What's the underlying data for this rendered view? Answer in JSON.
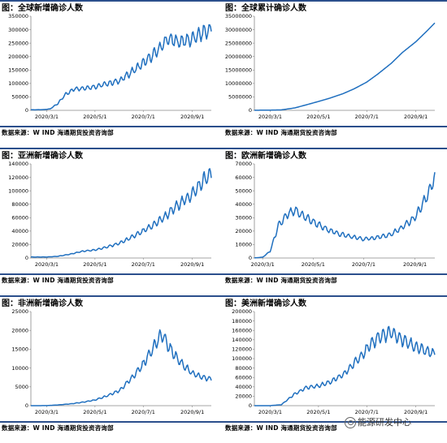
{
  "source_text": "数据来源：W IND   海通期货投资咨询部",
  "watermark": "能源研发中心",
  "line_color": "#1f6fbf",
  "axis_color": "#888888",
  "chart_data": [
    {
      "type": "line",
      "title": "图：全球新增确诊人数",
      "x_ticks": [
        "2020/3/1",
        "2020/5/1",
        "2020/7/1",
        "2020/9/1"
      ],
      "y_ticks": [
        "0",
        "50000",
        "100000",
        "150000",
        "200000",
        "250000",
        "300000",
        "350000"
      ],
      "ylim": [
        0,
        350000
      ],
      "x_range": [
        "2020/2/10",
        "2020/9/25"
      ],
      "series": [
        {
          "x": [
            "2020/2/10",
            "2020/2/25",
            "2020/3/5",
            "2020/3/15",
            "2020/3/25",
            "2020/4/5",
            "2020/4/15",
            "2020/5/1",
            "2020/5/15",
            "2020/6/1",
            "2020/6/15",
            "2020/7/1",
            "2020/7/15",
            "2020/8/1",
            "2020/8/15",
            "2020/9/1",
            "2020/9/15",
            "2020/9/25"
          ],
          "values": [
            2000,
            2500,
            5000,
            25000,
            60000,
            80000,
            82000,
            88000,
            98000,
            110000,
            140000,
            175000,
            210000,
            265000,
            255000,
            265000,
            290000,
            300000
          ]
        }
      ]
    },
    {
      "type": "line",
      "title": "图：全球累计确诊人数",
      "x_ticks": [
        "2020/3/1",
        "2020/5/1",
        "2020/7/1",
        "2020/9/1"
      ],
      "y_ticks": [
        "0",
        "5000000",
        "10000000",
        "15000000",
        "20000000",
        "25000000",
        "30000000",
        "35000000"
      ],
      "ylim": [
        0,
        35000000
      ],
      "x_range": [
        "2020/2/10",
        "2020/9/25"
      ],
      "series": [
        {
          "x": [
            "2020/2/10",
            "2020/3/1",
            "2020/3/15",
            "2020/4/1",
            "2020/4/15",
            "2020/5/1",
            "2020/5/15",
            "2020/6/1",
            "2020/6/15",
            "2020/7/1",
            "2020/7/15",
            "2020/8/1",
            "2020/8/15",
            "2020/9/1",
            "2020/9/15",
            "2020/9/25"
          ],
          "values": [
            40000,
            88000,
            170000,
            900000,
            2000000,
            3300000,
            4500000,
            6200000,
            8000000,
            10500000,
            13500000,
            17500000,
            21500000,
            25500000,
            29500000,
            32500000
          ]
        }
      ]
    },
    {
      "type": "line",
      "title": "图：亚洲新增确诊人数",
      "x_ticks": [
        "2020/3/1",
        "2020/5/1",
        "2020/7/1",
        "2020/9/1"
      ],
      "y_ticks": [
        "0",
        "20000",
        "40000",
        "60000",
        "80000",
        "100000",
        "120000",
        "140000"
      ],
      "ylim": [
        0,
        140000
      ],
      "x_range": [
        "2020/2/10",
        "2020/9/25"
      ],
      "series": [
        {
          "x": [
            "2020/2/10",
            "2020/3/1",
            "2020/3/15",
            "2020/4/1",
            "2020/4/15",
            "2020/5/1",
            "2020/5/15",
            "2020/6/1",
            "2020/6/15",
            "2020/7/1",
            "2020/7/15",
            "2020/8/1",
            "2020/8/15",
            "2020/9/1",
            "2020/9/15",
            "2020/9/25"
          ],
          "values": [
            1500,
            1500,
            2500,
            6000,
            10000,
            12000,
            16000,
            22000,
            30000,
            40000,
            50000,
            65000,
            80000,
            95000,
            115000,
            125000
          ]
        }
      ]
    },
    {
      "type": "line",
      "title": "图：欧洲新增确诊人数",
      "x_ticks": [
        "2020/3/1",
        "2020/5/1",
        "2020/7/1",
        "2020/9/1"
      ],
      "y_ticks": [
        "0",
        "10000",
        "20000",
        "30000",
        "40000",
        "50000",
        "60000",
        "70000"
      ],
      "ylim": [
        0,
        70000
      ],
      "x_range": [
        "2020/2/20",
        "2020/9/25"
      ],
      "series": [
        {
          "x": [
            "2020/2/20",
            "2020/3/1",
            "2020/3/10",
            "2020/3/20",
            "2020/4/1",
            "2020/4/10",
            "2020/4/20",
            "2020/5/1",
            "2020/5/15",
            "2020/6/1",
            "2020/6/15",
            "2020/7/1",
            "2020/7/15",
            "2020/8/1",
            "2020/8/15",
            "2020/9/1",
            "2020/9/15",
            "2020/9/25"
          ],
          "values": [
            100,
            600,
            5000,
            24000,
            33000,
            35000,
            31000,
            27000,
            22000,
            18000,
            16000,
            14000,
            15000,
            17000,
            22000,
            30000,
            45000,
            60000
          ]
        }
      ]
    },
    {
      "type": "line",
      "title": "图：非洲新增确诊人数",
      "x_ticks": [
        "2020/3/1",
        "2020/5/1",
        "2020/7/1",
        "2020/9/1"
      ],
      "y_ticks": [
        "0",
        "5000",
        "10000",
        "15000",
        "20000",
        "25000"
      ],
      "ylim": [
        0,
        25000
      ],
      "x_range": [
        "2020/2/10",
        "2020/9/25"
      ],
      "series": [
        {
          "x": [
            "2020/2/10",
            "2020/3/1",
            "2020/3/15",
            "2020/4/1",
            "2020/4/15",
            "2020/5/1",
            "2020/5/15",
            "2020/6/1",
            "2020/6/15",
            "2020/7/1",
            "2020/7/15",
            "2020/7/25",
            "2020/8/1",
            "2020/8/15",
            "2020/9/1",
            "2020/9/15",
            "2020/9/25"
          ],
          "values": [
            0,
            20,
            200,
            500,
            900,
            1500,
            2500,
            4000,
            7000,
            11000,
            16000,
            19000,
            16000,
            12000,
            8500,
            7500,
            7000
          ]
        }
      ]
    },
    {
      "type": "line",
      "title": "图：美洲新增确诊人数",
      "x_ticks": [
        "2020/3/1",
        "2020/5/1",
        "2020/7/1",
        "2020/9/1"
      ],
      "y_ticks": [
        "0",
        "20000",
        "40000",
        "60000",
        "80000",
        "100000",
        "120000",
        "140000",
        "160000",
        "180000",
        "200000"
      ],
      "ylim": [
        0,
        200000
      ],
      "x_range": [
        "2020/2/10",
        "2020/9/25"
      ],
      "series": [
        {
          "x": [
            "2020/2/10",
            "2020/3/1",
            "2020/3/15",
            "2020/4/1",
            "2020/4/15",
            "2020/5/1",
            "2020/5/15",
            "2020/6/1",
            "2020/6/15",
            "2020/7/1",
            "2020/7/15",
            "2020/8/1",
            "2020/8/15",
            "2020/9/1",
            "2020/9/15",
            "2020/9/25"
          ],
          "values": [
            0,
            100,
            2000,
            25000,
            38000,
            42000,
            50000,
            65000,
            90000,
            120000,
            145000,
            155000,
            140000,
            125000,
            115000,
            110000
          ]
        }
      ]
    }
  ]
}
